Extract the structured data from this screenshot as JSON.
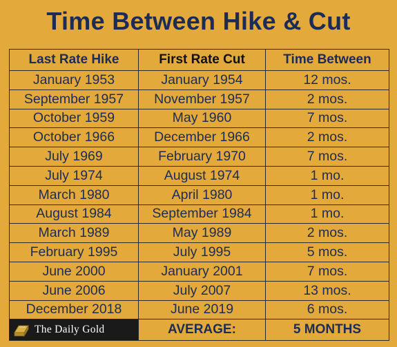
{
  "chart_data": {
    "type": "table",
    "title": "Time Between Hike & Cut",
    "columns": [
      "Last Rate Hike",
      "First Rate Cut",
      "Time Between"
    ],
    "rows": [
      [
        "January 1953",
        "January 1954",
        "12 mos."
      ],
      [
        "September 1957",
        "November 1957",
        "2 mos."
      ],
      [
        "October 1959",
        "May 1960",
        "7 mos."
      ],
      [
        "October 1966",
        "December 1966",
        "2 mos."
      ],
      [
        "July 1969",
        "February 1970",
        "7 mos."
      ],
      [
        "July 1974",
        "August 1974",
        "1 mo."
      ],
      [
        "March 1980",
        "April 1980",
        "1 mo."
      ],
      [
        "August 1984",
        "September 1984",
        "1 mo."
      ],
      [
        "March 1989",
        "May 1989",
        "2 mos."
      ],
      [
        "February 1995",
        "July 1995",
        "5 mos."
      ],
      [
        "June 2000",
        "January 2001",
        "7 mos."
      ],
      [
        "June 2006",
        "July 2007",
        "13 mos."
      ],
      [
        "December 2018",
        "June 2019",
        "6 mos."
      ]
    ],
    "average_label": "AVERAGE:",
    "average_value": "5 MONTHS"
  },
  "branding": {
    "logo_text": "The Daily Gold",
    "logo_icon": "gold-bar-icon"
  },
  "colors": {
    "background": "#E3A93A",
    "text_navy": "#1C2C57",
    "grid": "#2a2a2a",
    "logo_bg": "#1a1a1a"
  }
}
